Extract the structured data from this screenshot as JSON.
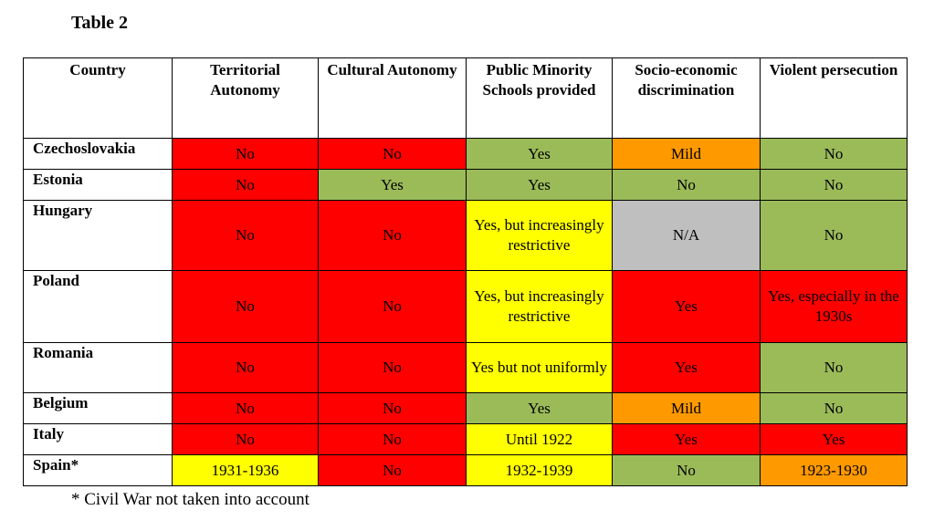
{
  "title": "Table 2",
  "colors": {
    "red": "#ff0000",
    "green": "#9bbb59",
    "yellow": "#ffff00",
    "orange": "#ff9900",
    "grey": "#bfbfbf"
  },
  "headers": [
    "Country",
    "Territorial Autonomy",
    "Cultural Autonomy",
    "Public Minority Schools provided",
    "Socio-economic discrimination",
    "Violent persecution"
  ],
  "rows": [
    {
      "country": "Czechoslovakia",
      "cells": [
        {
          "t": "No",
          "c": "red"
        },
        {
          "t": "No",
          "c": "red"
        },
        {
          "t": "Yes",
          "c": "green"
        },
        {
          "t": "Mild",
          "c": "orange"
        },
        {
          "t": "No",
          "c": "green"
        }
      ]
    },
    {
      "country": "Estonia",
      "cells": [
        {
          "t": "No",
          "c": "red"
        },
        {
          "t": "Yes",
          "c": "green"
        },
        {
          "t": "Yes",
          "c": "green"
        },
        {
          "t": "No",
          "c": "green"
        },
        {
          "t": "No",
          "c": "green"
        }
      ]
    },
    {
      "country": "Hungary",
      "cells": [
        {
          "t": "No",
          "c": "red"
        },
        {
          "t": "No",
          "c": "red"
        },
        {
          "t": "Yes, but increasingly restrictive",
          "c": "yellow"
        },
        {
          "t": "N/A",
          "c": "grey"
        },
        {
          "t": "No",
          "c": "green"
        }
      ]
    },
    {
      "country": "Poland",
      "cells": [
        {
          "t": "No",
          "c": "red"
        },
        {
          "t": "No",
          "c": "red"
        },
        {
          "t": "Yes, but increasingly restrictive",
          "c": "yellow"
        },
        {
          "t": "Yes",
          "c": "red"
        },
        {
          "t": "Yes, especially in the 1930s",
          "c": "red"
        }
      ]
    },
    {
      "country": "Romania",
      "cells": [
        {
          "t": "No",
          "c": "red"
        },
        {
          "t": "No",
          "c": "red"
        },
        {
          "t": "Yes but not uniformly",
          "c": "yellow"
        },
        {
          "t": "Yes",
          "c": "red"
        },
        {
          "t": "No",
          "c": "green"
        }
      ]
    },
    {
      "country": "Belgium",
      "cells": [
        {
          "t": "No",
          "c": "red"
        },
        {
          "t": "No",
          "c": "red"
        },
        {
          "t": "Yes",
          "c": "green"
        },
        {
          "t": "Mild",
          "c": "orange"
        },
        {
          "t": "No",
          "c": "green"
        }
      ]
    },
    {
      "country": "Italy",
      "cells": [
        {
          "t": "No",
          "c": "red"
        },
        {
          "t": "No",
          "c": "red"
        },
        {
          "t": "Until 1922",
          "c": "yellow"
        },
        {
          "t": "Yes",
          "c": "red"
        },
        {
          "t": "Yes",
          "c": "red"
        }
      ]
    },
    {
      "country": "Spain*",
      "cells": [
        {
          "t": "1931-1936",
          "c": "yellow"
        },
        {
          "t": "No",
          "c": "red"
        },
        {
          "t": "1932-1939",
          "c": "yellow"
        },
        {
          "t": "No",
          "c": "green"
        },
        {
          "t": "1923-1930",
          "c": "orange"
        }
      ]
    }
  ],
  "footnote": "* Civil War not taken into account"
}
